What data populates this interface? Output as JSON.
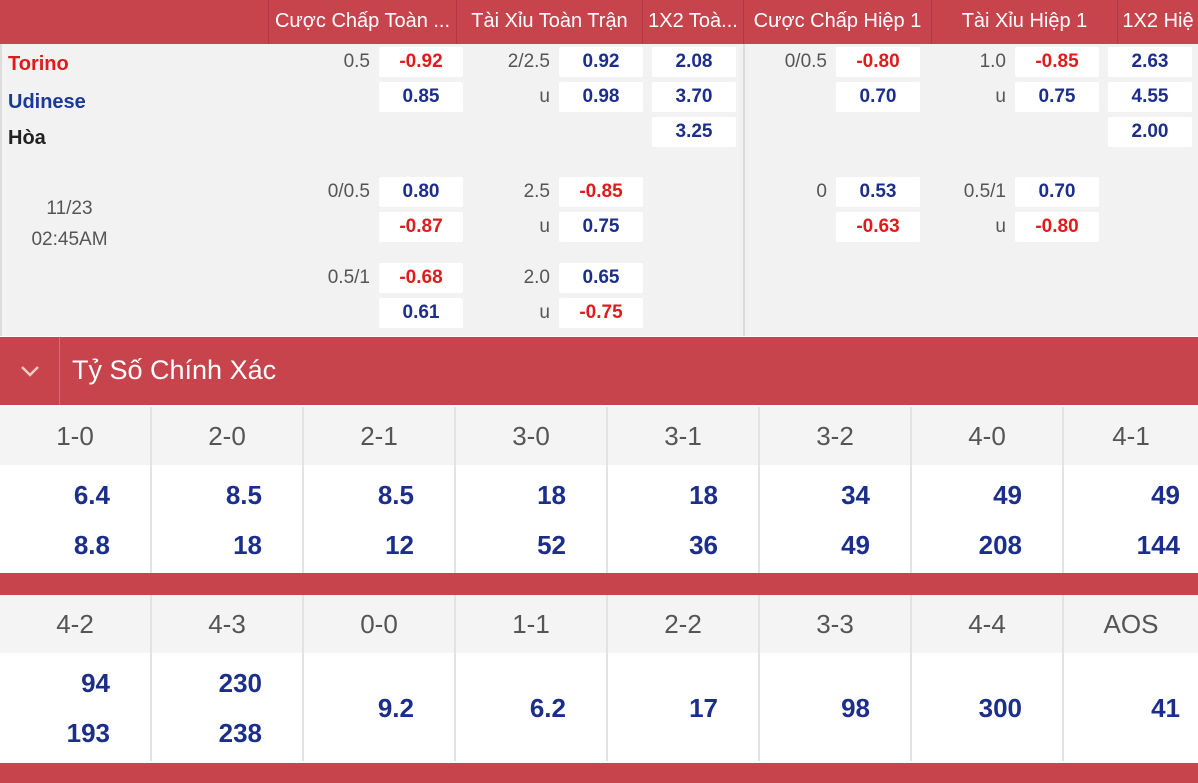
{
  "header": {
    "cols": [
      "Cược Chấp Toàn ...",
      "Tài Xỉu Toàn Trận",
      "1X2 Toà...",
      "Cược Chấp Hiệp 1",
      "Tài Xỉu Hiệp 1",
      "1X2 Hiệ"
    ]
  },
  "match": {
    "home": "Torino",
    "away": "Udinese",
    "draw": "Hòa",
    "date": "11/23",
    "time": "02:45AM"
  },
  "odds": {
    "ft_hdp": [
      {
        "line": "0.5",
        "home": "-0.92",
        "away": "0.85"
      },
      {
        "line": "0/0.5",
        "home": "0.80",
        "away": "-0.87"
      },
      {
        "line": "0.5/1",
        "home": "-0.68",
        "away": "0.61"
      }
    ],
    "ft_ou": [
      {
        "line": "2/2.5",
        "over": "0.92",
        "u": "u",
        "under": "0.98"
      },
      {
        "line": "2.5",
        "over": "-0.85",
        "u": "u",
        "under": "0.75"
      },
      {
        "line": "2.0",
        "over": "0.65",
        "u": "u",
        "under": "-0.75"
      }
    ],
    "ft_1x2": [
      "2.08",
      "3.70",
      "3.25"
    ],
    "h1_hdp": [
      {
        "line": "0/0.5",
        "home": "-0.80",
        "away": "0.70"
      },
      {
        "line": "0",
        "home": "0.53",
        "away": "-0.63"
      }
    ],
    "h1_ou": [
      {
        "line": "1.0",
        "over": "-0.85",
        "u": "u",
        "under": "0.75"
      },
      {
        "line": "0.5/1",
        "over": "0.70",
        "u": "u",
        "under": "-0.80"
      }
    ],
    "h1_1x2": [
      "2.63",
      "4.55",
      "2.00"
    ]
  },
  "correct_score": {
    "title": "Tỷ Số Chính Xác",
    "row1": {
      "scores": [
        "1-0",
        "2-0",
        "2-1",
        "3-0",
        "3-1",
        "3-2",
        "4-0",
        "4-1"
      ],
      "top": [
        "6.4",
        "8.5",
        "8.5",
        "18",
        "18",
        "34",
        "49",
        "49"
      ],
      "bottom": [
        "8.8",
        "18",
        "12",
        "52",
        "36",
        "49",
        "208",
        "144"
      ]
    },
    "row2": {
      "scores": [
        "4-2",
        "4-3",
        "0-0",
        "1-1",
        "2-2",
        "3-3",
        "4-4",
        "AOS"
      ],
      "top": [
        "94",
        "230"
      ],
      "bottom": [
        "193",
        "238"
      ],
      "single": [
        "9.2",
        "6.2",
        "17",
        "98",
        "300",
        "41"
      ]
    }
  },
  "colors": {
    "accent": "#c8444c",
    "positive": "#1c2e8c",
    "negative": "#e01b1b"
  }
}
